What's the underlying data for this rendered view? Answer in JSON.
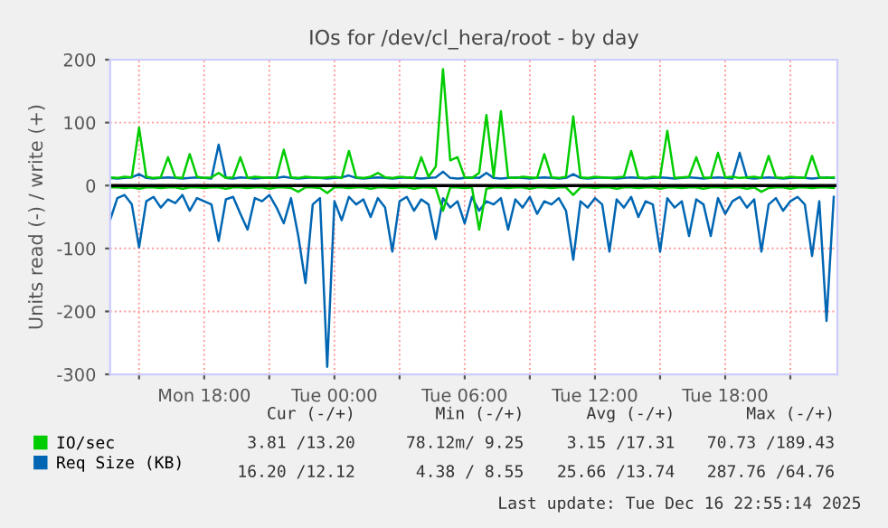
{
  "chart_data": {
    "type": "line",
    "title": "IOs for /dev/cl_hera/root - by day",
    "ylabel": "Units read (-) / write (+)",
    "x": [
      "2025-12-15T13:40",
      "2025-12-15T14:00",
      "2025-12-15T14:20",
      "2025-12-15T14:40",
      "2025-12-15T15:00",
      "2025-12-15T15:20",
      "2025-12-15T15:40",
      "2025-12-15T16:00",
      "2025-12-15T16:20",
      "2025-12-15T16:40",
      "2025-12-15T17:00",
      "2025-12-15T17:20",
      "2025-12-15T17:40",
      "2025-12-15T18:00",
      "2025-12-15T18:20",
      "2025-12-15T18:40",
      "2025-12-15T19:00",
      "2025-12-15T19:20",
      "2025-12-15T19:40",
      "2025-12-15T20:00",
      "2025-12-15T20:20",
      "2025-12-15T20:40",
      "2025-12-15T21:00",
      "2025-12-15T21:20",
      "2025-12-15T21:40",
      "2025-12-15T22:00",
      "2025-12-15T22:20",
      "2025-12-15T22:40",
      "2025-12-15T23:00",
      "2025-12-15T23:20",
      "2025-12-15T23:40",
      "2025-12-16T00:00",
      "2025-12-16T00:20",
      "2025-12-16T00:40",
      "2025-12-16T01:00",
      "2025-12-16T01:20",
      "2025-12-16T01:40",
      "2025-12-16T02:00",
      "2025-12-16T02:20",
      "2025-12-16T02:40",
      "2025-12-16T03:00",
      "2025-12-16T03:20",
      "2025-12-16T03:40",
      "2025-12-16T04:00",
      "2025-12-16T04:20",
      "2025-12-16T04:40",
      "2025-12-16T05:00",
      "2025-12-16T05:20",
      "2025-12-16T05:40",
      "2025-12-16T06:00",
      "2025-12-16T06:20",
      "2025-12-16T06:40",
      "2025-12-16T07:00",
      "2025-12-16T07:20",
      "2025-12-16T07:40",
      "2025-12-16T08:00",
      "2025-12-16T08:20",
      "2025-12-16T08:40",
      "2025-12-16T09:00",
      "2025-12-16T09:20",
      "2025-12-16T09:40",
      "2025-12-16T10:00",
      "2025-12-16T10:20",
      "2025-12-16T10:40",
      "2025-12-16T11:00",
      "2025-12-16T11:20",
      "2025-12-16T11:40",
      "2025-12-16T12:00",
      "2025-12-16T12:20",
      "2025-12-16T12:40",
      "2025-12-16T13:00",
      "2025-12-16T13:20",
      "2025-12-16T13:40",
      "2025-12-16T14:00",
      "2025-12-16T14:20",
      "2025-12-16T14:40",
      "2025-12-16T15:00",
      "2025-12-16T15:20",
      "2025-12-16T15:40",
      "2025-12-16T16:00",
      "2025-12-16T16:20",
      "2025-12-16T16:40",
      "2025-12-16T17:00",
      "2025-12-16T17:20",
      "2025-12-16T17:40",
      "2025-12-16T18:00",
      "2025-12-16T18:20",
      "2025-12-16T18:40",
      "2025-12-16T19:00",
      "2025-12-16T19:20",
      "2025-12-16T19:40",
      "2025-12-16T20:00",
      "2025-12-16T20:20",
      "2025-12-16T20:40",
      "2025-12-16T21:00",
      "2025-12-16T21:20",
      "2025-12-16T21:40",
      "2025-12-16T22:00",
      "2025-12-16T22:20",
      "2025-12-16T22:40",
      "2025-12-16T23:00"
    ],
    "series": [
      {
        "color": "#0066b3",
        "values": [
          -55,
          -20,
          -15,
          -30,
          -98,
          -25,
          -18,
          -35,
          -22,
          -28,
          -15,
          -40,
          -20,
          -25,
          -30,
          -88,
          -22,
          -18,
          -45,
          -70,
          -20,
          -25,
          -15,
          -35,
          -60,
          -20,
          -80,
          -155,
          -30,
          -20,
          -288,
          -25,
          -55,
          -18,
          -30,
          -22,
          -50,
          -20,
          -35,
          -105,
          -25,
          -18,
          -40,
          -22,
          -30,
          -85,
          -20,
          -35,
          -25,
          -60,
          -18,
          -40,
          -25,
          -30,
          -20,
          -70,
          -22,
          -35,
          -18,
          -45,
          -25,
          -30,
          -20,
          -40,
          -118,
          -25,
          -35,
          -20,
          -30,
          -105,
          -22,
          -35,
          -18,
          -50,
          -25,
          -30,
          -105,
          -20,
          -35,
          -25,
          -80,
          -22,
          -30,
          -80,
          -20,
          -45,
          -25,
          -18,
          -35,
          -22,
          -105,
          -30,
          -20,
          -40,
          -25,
          -18,
          -30,
          -112,
          -25,
          -215,
          -18
        ]
      },
      {
        "color": "#00cc00",
        "values": [
          -3,
          -3,
          -4,
          -3,
          -5,
          -3,
          -3,
          -4,
          -3,
          -3,
          -5,
          -3,
          -3,
          -4,
          -3,
          -3,
          -5,
          -3,
          -3,
          -4,
          -3,
          -3,
          -5,
          -3,
          -3,
          -4,
          -10,
          -3,
          -3,
          -4,
          -12,
          -3,
          -3,
          -4,
          -3,
          -3,
          -5,
          -3,
          -3,
          -4,
          -3,
          -3,
          -5,
          -3,
          -3,
          -4,
          -40,
          -3,
          -3,
          -4,
          -3,
          -70,
          -5,
          -3,
          -3,
          -4,
          -3,
          -3,
          -5,
          -3,
          -3,
          -4,
          -3,
          -3,
          -15,
          -3,
          -3,
          -4,
          -3,
          -3,
          -5,
          -3,
          -3,
          -4,
          -3,
          -3,
          -5,
          -3,
          -3,
          -4,
          -3,
          -3,
          -5,
          -3,
          -3,
          -4,
          -3,
          -3,
          -5,
          -3,
          -10,
          -4,
          -3,
          -3,
          -5,
          -3,
          -3,
          -4,
          -3,
          -3,
          -4
        ]
      },
      {
        "name": "Req Size (KB)",
        "color": "#0066b3",
        "values": [
          12,
          11,
          12,
          13,
          18,
          12,
          11,
          12,
          13,
          12,
          11,
          12,
          13,
          12,
          11,
          65,
          12,
          11,
          13,
          12,
          11,
          12,
          13,
          12,
          14,
          12,
          11,
          12,
          13,
          12,
          11,
          12,
          13,
          16,
          12,
          11,
          12,
          13,
          12,
          11,
          12,
          13,
          12,
          11,
          12,
          13,
          22,
          12,
          11,
          12,
          13,
          12,
          20,
          12,
          11,
          12,
          13,
          12,
          11,
          12,
          13,
          12,
          11,
          12,
          18,
          12,
          11,
          12,
          13,
          12,
          11,
          12,
          13,
          12,
          11,
          12,
          13,
          12,
          11,
          12,
          13,
          12,
          11,
          12,
          13,
          12,
          11,
          52,
          12,
          11,
          12,
          13,
          12,
          11,
          12,
          13,
          12,
          11,
          12,
          13,
          12
        ]
      },
      {
        "name": "IO/sec",
        "color": "#00cc00",
        "values": [
          13,
          12,
          14,
          13,
          92,
          14,
          12,
          13,
          45,
          13,
          12,
          50,
          14,
          12,
          13,
          20,
          12,
          13,
          45,
          12,
          14,
          13,
          12,
          13,
          57,
          13,
          12,
          14,
          13,
          12,
          13,
          14,
          12,
          55,
          13,
          12,
          14,
          20,
          13,
          12,
          14,
          13,
          12,
          45,
          14,
          30,
          185,
          40,
          45,
          13,
          12,
          20,
          112,
          14,
          118,
          13,
          12,
          14,
          13,
          12,
          50,
          13,
          12,
          14,
          110,
          13,
          12,
          14,
          13,
          12,
          13,
          14,
          55,
          13,
          12,
          14,
          13,
          87,
          12,
          13,
          14,
          45,
          13,
          12,
          52,
          13,
          14,
          12,
          13,
          14,
          12,
          47,
          13,
          12,
          14,
          13,
          12,
          47,
          13,
          12,
          13
        ]
      }
    ],
    "xlim": [
      "2025-12-15T13:40",
      "2025-12-16T23:10"
    ],
    "xticks": [
      {
        "value": "2025-12-15T15:00",
        "label": null
      },
      {
        "value": "2025-12-15T18:00",
        "label": "Mon 18:00"
      },
      {
        "value": "2025-12-15T21:00",
        "label": null
      },
      {
        "value": "2025-12-16T00:00",
        "label": "Tue 00:00"
      },
      {
        "value": "2025-12-16T03:00",
        "label": null
      },
      {
        "value": "2025-12-16T06:00",
        "label": "Tue 06:00"
      },
      {
        "value": "2025-12-16T09:00",
        "label": null
      },
      {
        "value": "2025-12-16T12:00",
        "label": "Tue 12:00"
      },
      {
        "value": "2025-12-16T15:00",
        "label": null
      },
      {
        "value": "2025-12-16T18:00",
        "label": "Tue 18:00"
      },
      {
        "value": "2025-12-16T21:00",
        "label": null
      }
    ],
    "ylim": [
      -300,
      200
    ],
    "yticks": [
      -300,
      -200,
      -100,
      0,
      100,
      200
    ],
    "ref_lines": [
      {
        "axis": "y",
        "value": 0,
        "color": "#000000"
      }
    ],
    "grid": true,
    "legend": "bottom",
    "annotations": [
      "Cur (-/+)",
      "Min (-/+)",
      "Avg (-/+)",
      "Max (-/+)",
      "3.81 /13.20",
      "78.12m/ 9.25",
      "3.15 /17.31",
      "70.73 /189.43",
      "16.20 /12.12",
      "4.38 / 8.55",
      "25.66 /13.74",
      "287.76 /64.76",
      "Last update: Tue Dec 16 22:55:14 2025"
    ]
  }
}
